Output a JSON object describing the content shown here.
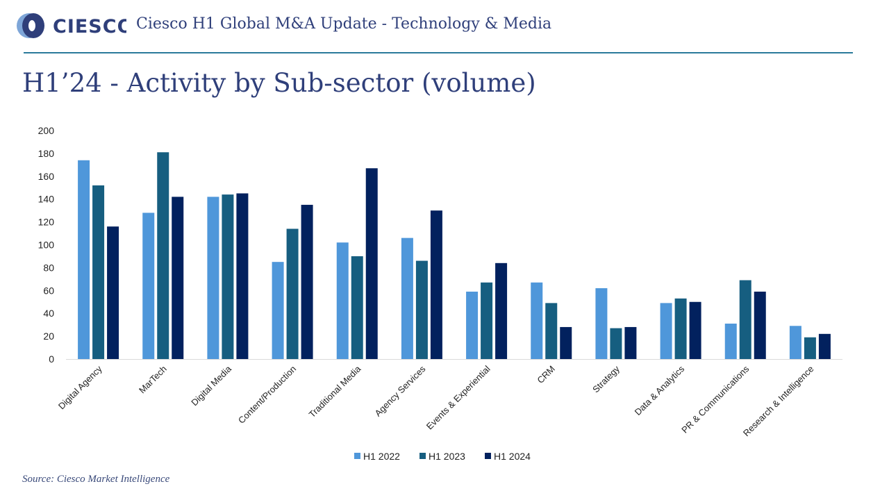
{
  "header": {
    "logo_text": "CIESCO",
    "title": "Ciesco H1 Global M&A Update - Technology & Media"
  },
  "page_title": "H1’24 - Activity by Sub-sector (volume)",
  "source": "Source: Ciesco Market Intelligence",
  "colors": {
    "brand": "#2f3f7a",
    "rule": "#2a7a9a",
    "h1_2022": "#4f97da",
    "h1_2023": "#165e80",
    "h1_2024": "#02215e"
  },
  "chart_data": {
    "type": "bar",
    "title": "",
    "xlabel": "",
    "ylabel": "",
    "ylim": [
      0,
      200
    ],
    "yticks": [
      0,
      20,
      40,
      60,
      80,
      100,
      120,
      140,
      160,
      180,
      200
    ],
    "grid": false,
    "legend_position": "bottom",
    "categories": [
      "Digital Agency",
      "MarTech",
      "Digital Media",
      "Content/Production",
      "Traditional Media",
      "Agency Services",
      "Events & Experiential",
      "CRM",
      "Strategy",
      "Data & Analytics",
      "PR & Communications",
      "Research & Intelligence"
    ],
    "series": [
      {
        "name": "H1 2022",
        "color": "#4f97da",
        "values": [
          174,
          128,
          142,
          85,
          102,
          106,
          59,
          67,
          62,
          49,
          31,
          29
        ]
      },
      {
        "name": "H1 2023",
        "color": "#165e80",
        "values": [
          152,
          181,
          144,
          114,
          90,
          86,
          67,
          49,
          27,
          53,
          69,
          19
        ]
      },
      {
        "name": "H1 2024",
        "color": "#02215e",
        "values": [
          116,
          142,
          145,
          135,
          167,
          130,
          84,
          28,
          28,
          50,
          59,
          22
        ]
      }
    ]
  }
}
